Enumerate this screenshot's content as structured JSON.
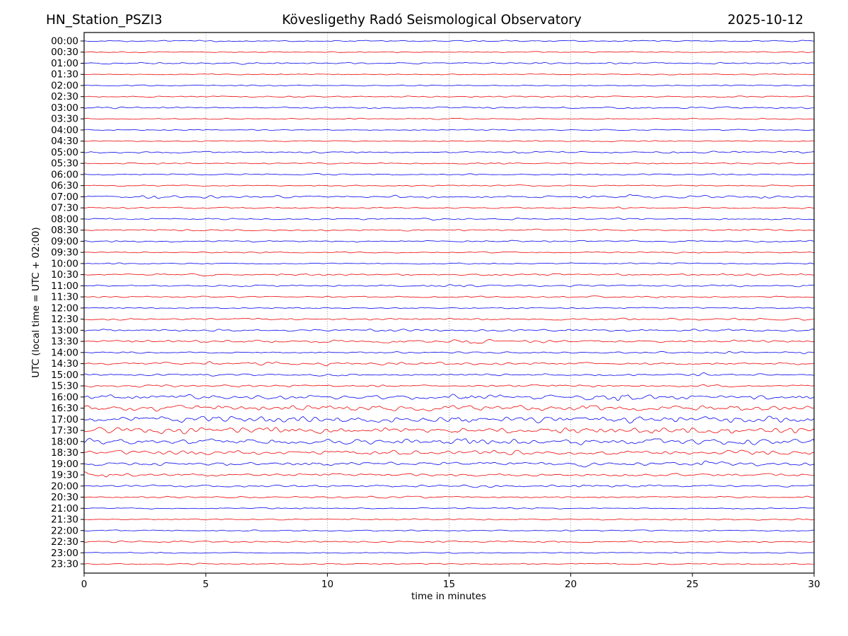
{
  "header": {
    "station": "HN_Station_PSZI3",
    "observatory": "Kövesligethy Radó Seismological Observatory",
    "date": "2025-10-12"
  },
  "chart_data": {
    "type": "line",
    "subtype": "helicorder-day-plot",
    "title": "Kövesligethy Radó Seismological Observatory",
    "station": "HN_Station_PSZI3",
    "date": "2025-10-12",
    "xlabel": "time in minutes",
    "ylabel": "UTC (local time = UTC + 02:00)",
    "xlim": [
      0,
      30
    ],
    "x_ticks": [
      0,
      5,
      10,
      15,
      20,
      25,
      30
    ],
    "row_spacing_minutes": 30,
    "grid": {
      "vertical_dotted_at_minutes": [
        5,
        10,
        15,
        20,
        25
      ],
      "color": "#8a8a8a"
    },
    "frame_color": "#000000",
    "trace_colors": {
      "hour": "#0000ee",
      "half_hour": "#ee0000"
    },
    "rows": [
      {
        "t": "00:00",
        "c": "hour",
        "amp": 0.6,
        "bursts": []
      },
      {
        "t": "00:30",
        "c": "half_hour",
        "amp": 0.5,
        "bursts": []
      },
      {
        "t": "01:00",
        "c": "hour",
        "amp": 0.8,
        "bursts": []
      },
      {
        "t": "01:30",
        "c": "half_hour",
        "amp": 0.5,
        "bursts": []
      },
      {
        "t": "02:00",
        "c": "hour",
        "amp": 0.5,
        "bursts": []
      },
      {
        "t": "02:30",
        "c": "half_hour",
        "amp": 0.6,
        "bursts": []
      },
      {
        "t": "03:00",
        "c": "hour",
        "amp": 0.8,
        "bursts": []
      },
      {
        "t": "03:30",
        "c": "half_hour",
        "amp": 0.5,
        "bursts": []
      },
      {
        "t": "04:00",
        "c": "hour",
        "amp": 0.5,
        "bursts": []
      },
      {
        "t": "04:30",
        "c": "half_hour",
        "amp": 0.5,
        "bursts": []
      },
      {
        "t": "05:00",
        "c": "hour",
        "amp": 0.8,
        "bursts": []
      },
      {
        "t": "05:30",
        "c": "half_hour",
        "amp": 0.6,
        "bursts": [
          [
            17.5,
            0.3,
            0.8
          ]
        ]
      },
      {
        "t": "06:00",
        "c": "hour",
        "amp": 0.6,
        "bursts": [
          [
            9.6,
            0.2,
            1.0
          ],
          [
            12.0,
            0.2,
            0.8
          ]
        ]
      },
      {
        "t": "06:30",
        "c": "half_hour",
        "amp": 0.6,
        "bursts": []
      },
      {
        "t": "07:00",
        "c": "hour",
        "amp": 1.0,
        "bursts": [
          [
            2.9,
            0.5,
            1.3
          ],
          [
            5.2,
            0.4,
            1.0
          ],
          [
            12.8,
            0.4,
            0.7
          ],
          [
            20.6,
            0.3,
            1.0
          ],
          [
            22.4,
            0.5,
            1.3
          ],
          [
            28.0,
            0.4,
            0.7
          ]
        ]
      },
      {
        "t": "07:30",
        "c": "half_hour",
        "amp": 0.7,
        "bursts": [
          [
            22.0,
            0.2,
            0.8
          ]
        ]
      },
      {
        "t": "08:00",
        "c": "hour",
        "amp": 0.7,
        "bursts": [
          [
            0.5,
            0.4,
            0.9
          ],
          [
            14.3,
            0.3,
            1.4
          ]
        ]
      },
      {
        "t": "08:30",
        "c": "half_hour",
        "amp": 0.8,
        "bursts": []
      },
      {
        "t": "09:00",
        "c": "hour",
        "amp": 0.7,
        "bursts": []
      },
      {
        "t": "09:30",
        "c": "half_hour",
        "amp": 0.6,
        "bursts": []
      },
      {
        "t": "10:00",
        "c": "hour",
        "amp": 0.6,
        "bursts": []
      },
      {
        "t": "10:30",
        "c": "half_hour",
        "amp": 0.8,
        "bursts": [
          [
            5.0,
            0.4,
            1.1
          ]
        ]
      },
      {
        "t": "11:00",
        "c": "hour",
        "amp": 0.8,
        "bursts": [
          [
            15.6,
            0.5,
            1.1
          ],
          [
            29.6,
            0.4,
            1.3
          ]
        ]
      },
      {
        "t": "11:30",
        "c": "half_hour",
        "amp": 0.7,
        "bursts": []
      },
      {
        "t": "12:00",
        "c": "hour",
        "amp": 0.6,
        "bursts": []
      },
      {
        "t": "12:30",
        "c": "half_hour",
        "amp": 0.9,
        "bursts": []
      },
      {
        "t": "13:00",
        "c": "hour",
        "amp": 1.0,
        "bursts": [
          [
            12.0,
            1.0,
            0.7
          ]
        ]
      },
      {
        "t": "13:30",
        "c": "half_hour",
        "amp": 1.2,
        "bursts": [
          [
            16.0,
            1.0,
            0.6
          ]
        ]
      },
      {
        "t": "14:00",
        "c": "hour",
        "amp": 0.7,
        "bursts": [
          [
            17.5,
            0.5,
            1.0
          ],
          [
            26.5,
            0.6,
            1.2
          ],
          [
            29.6,
            0.3,
            1.0
          ]
        ]
      },
      {
        "t": "14:30",
        "c": "half_hour",
        "amp": 1.1,
        "bursts": [
          [
            5.3,
            0.4,
            0.8
          ],
          [
            7.6,
            0.4,
            0.8
          ],
          [
            9.9,
            0.4,
            0.9
          ]
        ]
      },
      {
        "t": "15:00",
        "c": "hour",
        "amp": 1.0,
        "bursts": [
          [
            10.0,
            0.5,
            0.9
          ],
          [
            16.0,
            0.5,
            0.9
          ],
          [
            25.3,
            0.5,
            0.8
          ]
        ]
      },
      {
        "t": "15:30",
        "c": "half_hour",
        "amp": 1.1,
        "bursts": []
      },
      {
        "t": "16:00",
        "c": "hour",
        "amp": 1.9,
        "bursts": [
          [
            15.6,
            0.5,
            1.0
          ],
          [
            21.8,
            1.2,
            1.0
          ],
          [
            27.6,
            0.6,
            0.8
          ]
        ]
      },
      {
        "t": "16:30",
        "c": "half_hour",
        "amp": 2.6,
        "bursts": []
      },
      {
        "t": "17:00",
        "c": "hour",
        "amp": 3.0,
        "bursts": []
      },
      {
        "t": "17:30",
        "c": "half_hour",
        "amp": 2.9,
        "bursts": []
      },
      {
        "t": "18:00",
        "c": "hour",
        "amp": 2.6,
        "bursts": []
      },
      {
        "t": "18:30",
        "c": "half_hour",
        "amp": 2.0,
        "bursts": []
      },
      {
        "t": "19:00",
        "c": "hour",
        "amp": 1.6,
        "bursts": [
          [
            20.6,
            0.5,
            0.7
          ],
          [
            23.0,
            0.5,
            0.7
          ],
          [
            25.6,
            0.5,
            0.7
          ]
        ]
      },
      {
        "t": "19:30",
        "c": "half_hour",
        "amp": 1.1,
        "bursts": [
          [
            0.5,
            0.8,
            1.6
          ]
        ]
      },
      {
        "t": "20:00",
        "c": "hour",
        "amp": 1.0,
        "bursts": [
          [
            16.6,
            0.4,
            0.9
          ],
          [
            20.6,
            0.4,
            1.0
          ],
          [
            23.2,
            0.4,
            0.9
          ]
        ]
      },
      {
        "t": "20:30",
        "c": "half_hour",
        "amp": 0.8,
        "bursts": []
      },
      {
        "t": "21:00",
        "c": "hour",
        "amp": 0.6,
        "bursts": []
      },
      {
        "t": "21:30",
        "c": "half_hour",
        "amp": 0.6,
        "bursts": []
      },
      {
        "t": "22:00",
        "c": "hour",
        "amp": 0.6,
        "bursts": []
      },
      {
        "t": "22:30",
        "c": "half_hour",
        "amp": 0.8,
        "bursts": []
      },
      {
        "t": "23:00",
        "c": "hour",
        "amp": 0.5,
        "bursts": []
      },
      {
        "t": "23:30",
        "c": "half_hour",
        "amp": 0.6,
        "bursts": []
      }
    ]
  }
}
